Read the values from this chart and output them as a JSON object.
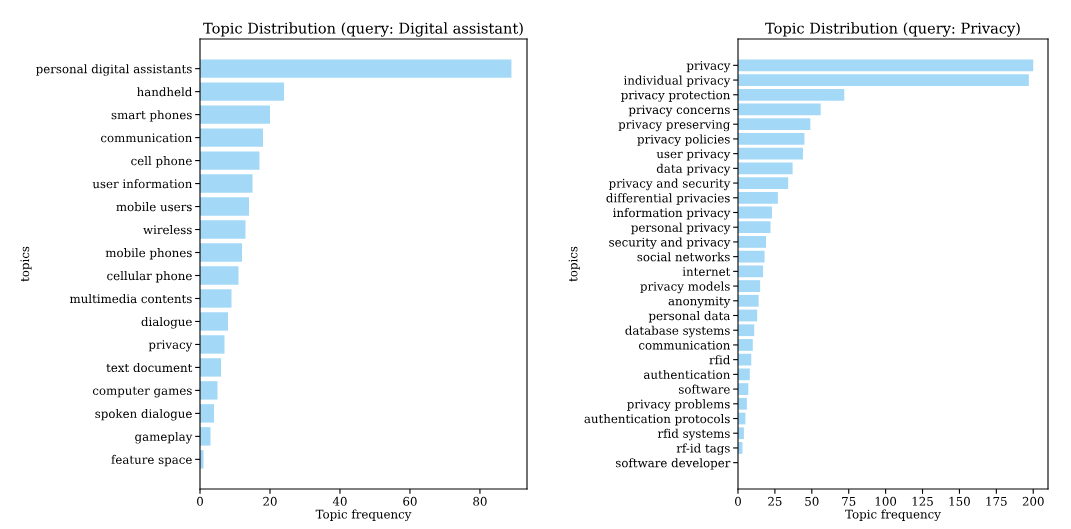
{
  "chart_data": [
    {
      "type": "bar",
      "orientation": "horizontal",
      "title": "Topic Distribution (query: Digital assistant)",
      "xlabel": "Topic frequency",
      "ylabel": "topics",
      "color": "#a3d8f7",
      "categories": [
        "personal digital assistants",
        "handheld",
        "smart phones",
        "communication",
        "cell phone",
        "user information",
        "mobile users",
        "wireless",
        "mobile phones",
        "cellular phone",
        "multimedia contents",
        "dialogue",
        "privacy",
        "text document",
        "computer games",
        "spoken dialogue",
        "gameplay",
        "feature space"
      ],
      "values": [
        89,
        24,
        20,
        18,
        17,
        15,
        14,
        13,
        12,
        11,
        9,
        8,
        7,
        6,
        5,
        4,
        3,
        1
      ],
      "xlim": [
        0,
        93.45
      ],
      "xticks": [
        0,
        20,
        40,
        60,
        80
      ],
      "grid": false,
      "legend": false
    },
    {
      "type": "bar",
      "orientation": "horizontal",
      "title": "Topic Distribution (query: Privacy)",
      "xlabel": "Topic frequency",
      "ylabel": "topics",
      "color": "#a3d8f7",
      "categories": [
        "privacy",
        "individual privacy",
        "privacy protection",
        "privacy concerns",
        "privacy preserving",
        "privacy policies",
        "user privacy",
        "data privacy",
        "privacy and security",
        "differential privacies",
        "information privacy",
        "personal privacy",
        "security and privacy",
        "social networks",
        "internet",
        "privacy models",
        "anonymity",
        "personal data",
        "database systems",
        "communication",
        "rfid",
        "authentication",
        "software",
        "privacy problems",
        "authentication protocols",
        "rfid systems",
        "rf-id tags",
        "software developer"
      ],
      "values": [
        200,
        197,
        72,
        56,
        49,
        45,
        44,
        37,
        34,
        27,
        23,
        22,
        19,
        18,
        17,
        15,
        14,
        13,
        11,
        10,
        9,
        8,
        7,
        6,
        5,
        4,
        3,
        0
      ],
      "xlim": [
        0,
        210
      ],
      "xticks": [
        0,
        25,
        50,
        75,
        100,
        125,
        150,
        175,
        200
      ],
      "grid": false,
      "legend": false
    }
  ]
}
